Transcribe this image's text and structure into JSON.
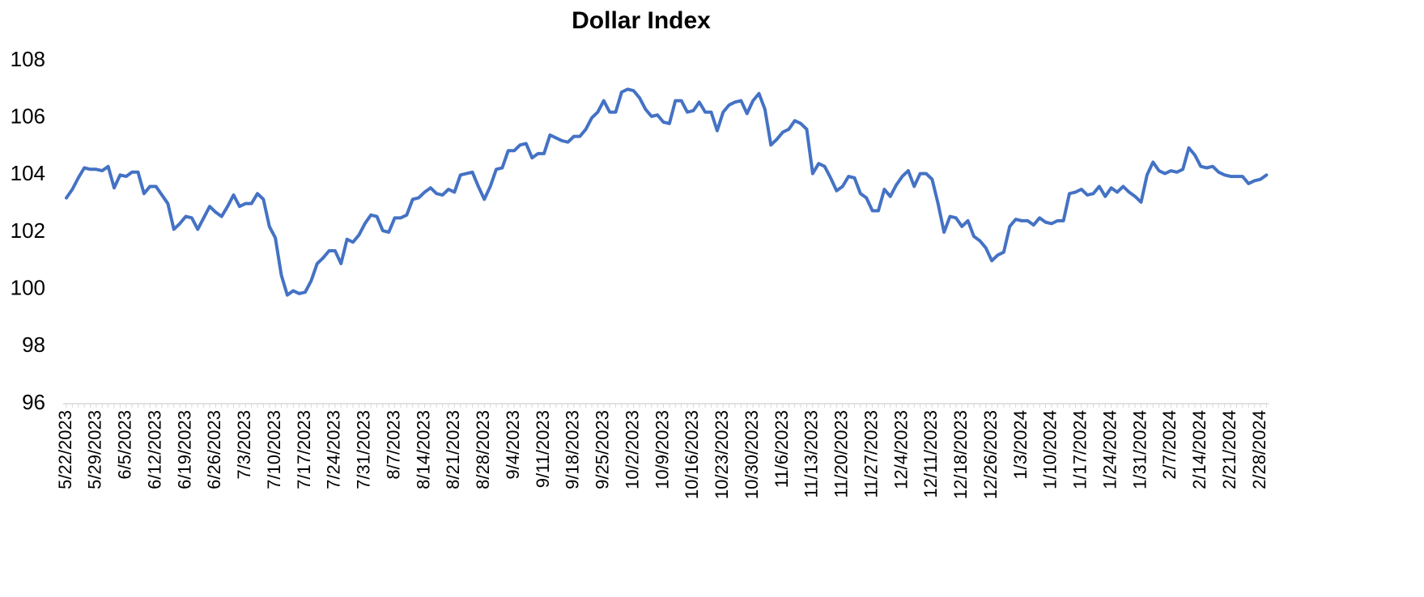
{
  "chart_data": {
    "type": "line",
    "title": "Dollar Index",
    "categories": [
      "5/22/2023",
      null,
      null,
      null,
      null,
      "5/29/2023",
      null,
      null,
      null,
      null,
      "6/5/2023",
      null,
      null,
      null,
      null,
      "6/12/2023",
      null,
      null,
      null,
      null,
      "6/19/2023",
      null,
      null,
      null,
      null,
      "6/26/2023",
      null,
      null,
      null,
      null,
      "7/3/2023",
      null,
      null,
      null,
      null,
      "7/10/2023",
      null,
      null,
      null,
      null,
      "7/17/2023",
      null,
      null,
      null,
      null,
      "7/24/2023",
      null,
      null,
      null,
      null,
      "7/31/2023",
      null,
      null,
      null,
      null,
      "8/7/2023",
      null,
      null,
      null,
      null,
      "8/14/2023",
      null,
      null,
      null,
      null,
      "8/21/2023",
      null,
      null,
      null,
      null,
      "8/28/2023",
      null,
      null,
      null,
      null,
      "9/4/2023",
      null,
      null,
      null,
      null,
      "9/11/2023",
      null,
      null,
      null,
      null,
      "9/18/2023",
      null,
      null,
      null,
      null,
      "9/25/2023",
      null,
      null,
      null,
      null,
      "10/2/2023",
      null,
      null,
      null,
      null,
      "10/9/2023",
      null,
      null,
      null,
      null,
      "10/16/2023",
      null,
      null,
      null,
      null,
      "10/23/2023",
      null,
      null,
      null,
      null,
      "10/30/2023",
      null,
      null,
      null,
      null,
      "11/6/2023",
      null,
      null,
      null,
      null,
      "11/13/2023",
      null,
      null,
      null,
      null,
      "11/20/2023",
      null,
      null,
      null,
      null,
      "11/27/2023",
      null,
      null,
      null,
      null,
      "12/4/2023",
      null,
      null,
      null,
      null,
      "12/11/2023",
      null,
      null,
      null,
      null,
      "12/18/2023",
      null,
      null,
      null,
      null,
      "12/26/2023",
      null,
      null,
      null,
      null,
      "1/3/2024",
      null,
      null,
      null,
      null,
      "1/10/2024",
      null,
      null,
      null,
      null,
      "1/17/2024",
      null,
      null,
      null,
      null,
      "1/24/2024",
      null,
      null,
      null,
      null,
      "1/31/2024",
      null,
      null,
      null,
      null,
      "2/7/2024",
      null,
      null,
      null,
      null,
      "2/14/2024",
      null,
      null,
      null,
      null,
      "2/21/2024",
      null,
      null,
      null,
      null,
      "2/28/2024",
      null
    ],
    "values": [
      103.2,
      103.5,
      103.9,
      104.25,
      104.2,
      104.2,
      104.15,
      104.3,
      103.55,
      104.0,
      103.95,
      104.1,
      104.1,
      103.35,
      103.6,
      103.6,
      103.3,
      103.0,
      102.1,
      102.3,
      102.55,
      102.5,
      102.1,
      102.5,
      102.9,
      102.7,
      102.55,
      102.9,
      103.3,
      102.9,
      103.0,
      103.0,
      103.35,
      103.15,
      102.2,
      101.8,
      100.5,
      99.8,
      99.95,
      99.85,
      99.9,
      100.3,
      100.9,
      101.1,
      101.35,
      101.35,
      100.9,
      101.75,
      101.65,
      101.9,
      102.3,
      102.6,
      102.55,
      102.05,
      102.0,
      102.5,
      102.5,
      102.6,
      103.15,
      103.2,
      103.4,
      103.55,
      103.35,
      103.3,
      103.5,
      103.4,
      104.0,
      104.05,
      104.1,
      103.6,
      103.15,
      103.6,
      104.2,
      104.25,
      104.85,
      104.85,
      105.05,
      105.1,
      104.6,
      104.75,
      104.75,
      105.4,
      105.3,
      105.2,
      105.15,
      105.35,
      105.35,
      105.6,
      106.0,
      106.2,
      106.6,
      106.2,
      106.2,
      106.9,
      107.0,
      106.95,
      106.7,
      106.3,
      106.05,
      106.1,
      105.85,
      105.8,
      106.6,
      106.6,
      106.2,
      106.25,
      106.55,
      106.2,
      106.2,
      105.55,
      106.2,
      106.45,
      106.55,
      106.6,
      106.15,
      106.6,
      106.85,
      106.3,
      105.05,
      105.25,
      105.5,
      105.6,
      105.9,
      105.8,
      105.6,
      104.05,
      104.4,
      104.3,
      103.9,
      103.45,
      103.6,
      103.95,
      103.9,
      103.35,
      103.2,
      102.75,
      102.75,
      103.5,
      103.25,
      103.65,
      103.95,
      104.15,
      103.6,
      104.05,
      104.05,
      103.85,
      103.0,
      102.0,
      102.55,
      102.5,
      102.2,
      102.4,
      101.85,
      101.7,
      101.45,
      101.0,
      101.2,
      101.3,
      102.2,
      102.45,
      102.4,
      102.4,
      102.25,
      102.5,
      102.35,
      102.3,
      102.4,
      102.4,
      103.35,
      103.4,
      103.5,
      103.3,
      103.35,
      103.6,
      103.25,
      103.55,
      103.4,
      103.6,
      103.4,
      103.25,
      103.05,
      104.0,
      104.45,
      104.15,
      104.05,
      104.15,
      104.1,
      104.2,
      104.95,
      104.7,
      104.3,
      104.25,
      104.3,
      104.1,
      104.0,
      103.95,
      103.95,
      103.95,
      103.7,
      103.8,
      103.85,
      104.0
    ],
    "color": "#4472c4",
    "ylim": [
      96,
      108
    ],
    "yticks": [
      96,
      98,
      100,
      102,
      104,
      106,
      108
    ],
    "grid": false
  }
}
